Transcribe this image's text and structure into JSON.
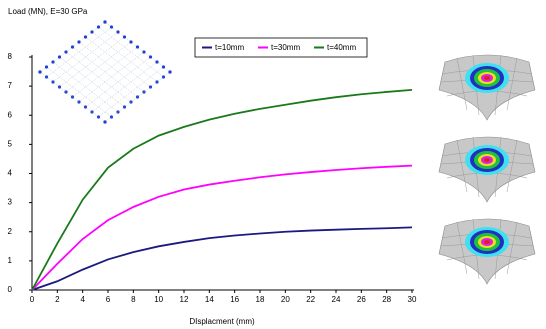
{
  "chart_data": {
    "type": "line",
    "title": "Load (MN),  E=30 GPa",
    "x_label": "DIsplacment (mm)",
    "x": [
      0,
      2,
      4,
      6,
      8,
      10,
      12,
      14,
      16,
      18,
      20,
      22,
      24,
      26,
      28,
      30
    ],
    "series": [
      {
        "name": "t=10mm",
        "color": "#1a1a80",
        "values": [
          0,
          0.3,
          0.7,
          1.05,
          1.3,
          1.5,
          1.65,
          1.78,
          1.87,
          1.94,
          2.0,
          2.04,
          2.07,
          2.1,
          2.12,
          2.15
        ]
      },
      {
        "name": "t=30mm",
        "color": "#ff00ff",
        "values": [
          0,
          0.9,
          1.75,
          2.4,
          2.85,
          3.2,
          3.45,
          3.62,
          3.75,
          3.87,
          3.97,
          4.05,
          4.12,
          4.18,
          4.23,
          4.27
        ]
      },
      {
        "name": "t=40mm",
        "color": "#1a7a1a",
        "values": [
          0,
          1.6,
          3.1,
          4.2,
          4.85,
          5.3,
          5.6,
          5.85,
          6.05,
          6.22,
          6.36,
          6.5,
          6.62,
          6.72,
          6.8,
          6.87
        ]
      }
    ],
    "xlim": [
      0,
      30
    ],
    "xticks": [
      0,
      2,
      4,
      6,
      8,
      10,
      12,
      14,
      16,
      18,
      20,
      22,
      24,
      26,
      28,
      30
    ],
    "ylim": [
      0,
      8
    ],
    "yticks": [
      0,
      1,
      2,
      3,
      4,
      5,
      6,
      7,
      8
    ],
    "grid": false
  }
}
